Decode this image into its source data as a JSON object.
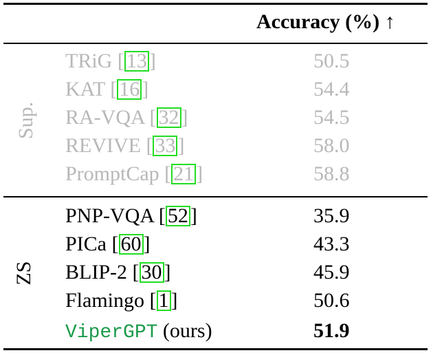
{
  "header": {
    "column": "Accuracy (%)",
    "arrow": "↑"
  },
  "groups": {
    "supervised": "Sup.",
    "zero_shot": "ZS"
  },
  "rows": [
    {
      "method": "TRiG",
      "cite": "13",
      "acc": "50.5"
    },
    {
      "method": "KAT",
      "cite": "16",
      "acc": "54.4"
    },
    {
      "method": "RA-VQA",
      "cite": "32",
      "acc": "54.5"
    },
    {
      "method": "REVIVE",
      "cite": "33",
      "acc": "58.0"
    },
    {
      "method": "PromptCap",
      "cite": "21",
      "acc": "58.8"
    },
    {
      "method": "PNP-VQA",
      "cite": "52",
      "acc": "35.9"
    },
    {
      "method": "PICa",
      "cite": "60",
      "acc": "43.3"
    },
    {
      "method": "BLIP-2",
      "cite": "30",
      "acc": "45.9"
    },
    {
      "method": "Flamingo",
      "cite": "1",
      "acc": "50.6"
    },
    {
      "method": "ViperGPT",
      "suffix": "(ours)",
      "acc": "51.9"
    }
  ],
  "colors": {
    "faded": "#b8b8b8",
    "citation_box": "#22dd22",
    "viper": "#1a9a4a"
  }
}
